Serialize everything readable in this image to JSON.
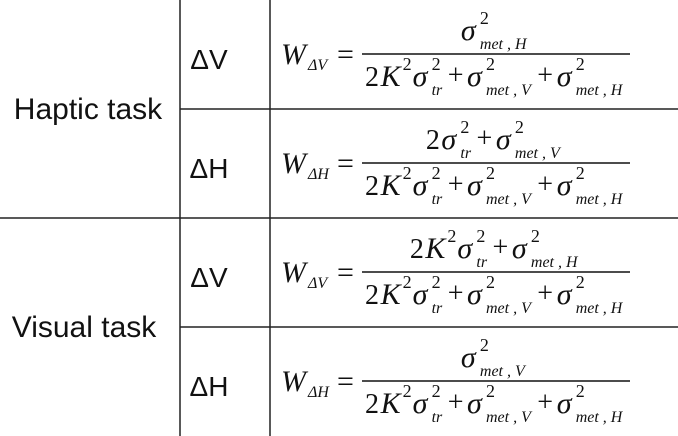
{
  "table": {
    "groups": [
      {
        "label": "Haptic task",
        "rows": [
          {
            "condition": "ΔV",
            "w": "W",
            "w_sub": "ΔV",
            "numerator": [
              {
                "t": "σ",
                "k": "s"
              },
              {
                "t": "2",
                "k": "sup"
              },
              {
                "t": "met , H",
                "k": "sub"
              }
            ],
            "denominator": [
              {
                "t": "2",
                "k": "n"
              },
              {
                "t": "K",
                "k": "i"
              },
              {
                "t": "2",
                "k": "sup"
              },
              {
                "t": "σ",
                "k": "s"
              },
              {
                "t": "2",
                "k": "sup"
              },
              {
                "t": "tr",
                "k": "sub"
              },
              {
                "t": "+",
                "k": "op"
              },
              {
                "t": "σ",
                "k": "s"
              },
              {
                "t": "2",
                "k": "sup"
              },
              {
                "t": "met , V",
                "k": "sub"
              },
              {
                "t": "+",
                "k": "op"
              },
              {
                "t": "σ",
                "k": "s"
              },
              {
                "t": "2",
                "k": "sup"
              },
              {
                "t": "met , H",
                "k": "sub"
              }
            ]
          },
          {
            "condition": "ΔH",
            "w": "W",
            "w_sub": "ΔH",
            "numerator": [
              {
                "t": "2",
                "k": "n"
              },
              {
                "t": "σ",
                "k": "s"
              },
              {
                "t": "2",
                "k": "sup"
              },
              {
                "t": "tr",
                "k": "sub"
              },
              {
                "t": "+",
                "k": "op"
              },
              {
                "t": "σ",
                "k": "s"
              },
              {
                "t": "2",
                "k": "sup"
              },
              {
                "t": "met , V",
                "k": "sub"
              }
            ],
            "denominator": [
              {
                "t": "2",
                "k": "n"
              },
              {
                "t": "K",
                "k": "i"
              },
              {
                "t": "2",
                "k": "sup"
              },
              {
                "t": "σ",
                "k": "s"
              },
              {
                "t": "2",
                "k": "sup"
              },
              {
                "t": "tr",
                "k": "sub"
              },
              {
                "t": "+",
                "k": "op"
              },
              {
                "t": "σ",
                "k": "s"
              },
              {
                "t": "2",
                "k": "sup"
              },
              {
                "t": "met , V",
                "k": "sub"
              },
              {
                "t": "+",
                "k": "op"
              },
              {
                "t": "σ",
                "k": "s"
              },
              {
                "t": "2",
                "k": "sup"
              },
              {
                "t": "met , H",
                "k": "sub"
              }
            ]
          }
        ]
      },
      {
        "label": "Visual task",
        "rows": [
          {
            "condition": "ΔV",
            "w": "W",
            "w_sub": "ΔV",
            "numerator": [
              {
                "t": "2",
                "k": "n"
              },
              {
                "t": "K",
                "k": "i"
              },
              {
                "t": "2",
                "k": "sup"
              },
              {
                "t": "σ",
                "k": "s"
              },
              {
                "t": "2",
                "k": "sup"
              },
              {
                "t": "tr",
                "k": "sub"
              },
              {
                "t": "+",
                "k": "op"
              },
              {
                "t": "σ",
                "k": "s"
              },
              {
                "t": "2",
                "k": "sup"
              },
              {
                "t": "met , H",
                "k": "sub"
              }
            ],
            "denominator": [
              {
                "t": "2",
                "k": "n"
              },
              {
                "t": "K",
                "k": "i"
              },
              {
                "t": "2",
                "k": "sup"
              },
              {
                "t": "σ",
                "k": "s"
              },
              {
                "t": "2",
                "k": "sup"
              },
              {
                "t": "tr",
                "k": "sub"
              },
              {
                "t": "+",
                "k": "op"
              },
              {
                "t": "σ",
                "k": "s"
              },
              {
                "t": "2",
                "k": "sup"
              },
              {
                "t": "met , V",
                "k": "sub"
              },
              {
                "t": "+",
                "k": "op"
              },
              {
                "t": "σ",
                "k": "s"
              },
              {
                "t": "2",
                "k": "sup"
              },
              {
                "t": "met , H",
                "k": "sub"
              }
            ]
          },
          {
            "condition": "ΔH",
            "w": "W",
            "w_sub": "ΔH",
            "numerator": [
              {
                "t": "σ",
                "k": "s"
              },
              {
                "t": "2",
                "k": "sup"
              },
              {
                "t": "met , V",
                "k": "sub"
              }
            ],
            "denominator": [
              {
                "t": "2",
                "k": "n"
              },
              {
                "t": "K",
                "k": "i"
              },
              {
                "t": "2",
                "k": "sup"
              },
              {
                "t": "σ",
                "k": "s"
              },
              {
                "t": "2",
                "k": "sup"
              },
              {
                "t": "tr",
                "k": "sub"
              },
              {
                "t": "+",
                "k": "op"
              },
              {
                "t": "σ",
                "k": "s"
              },
              {
                "t": "2",
                "k": "sup"
              },
              {
                "t": "met , V",
                "k": "sub"
              },
              {
                "t": "+",
                "k": "op"
              },
              {
                "t": "σ",
                "k": "s"
              },
              {
                "t": "2",
                "k": "sup"
              },
              {
                "t": "met , H",
                "k": "sub"
              }
            ]
          }
        ]
      }
    ]
  }
}
